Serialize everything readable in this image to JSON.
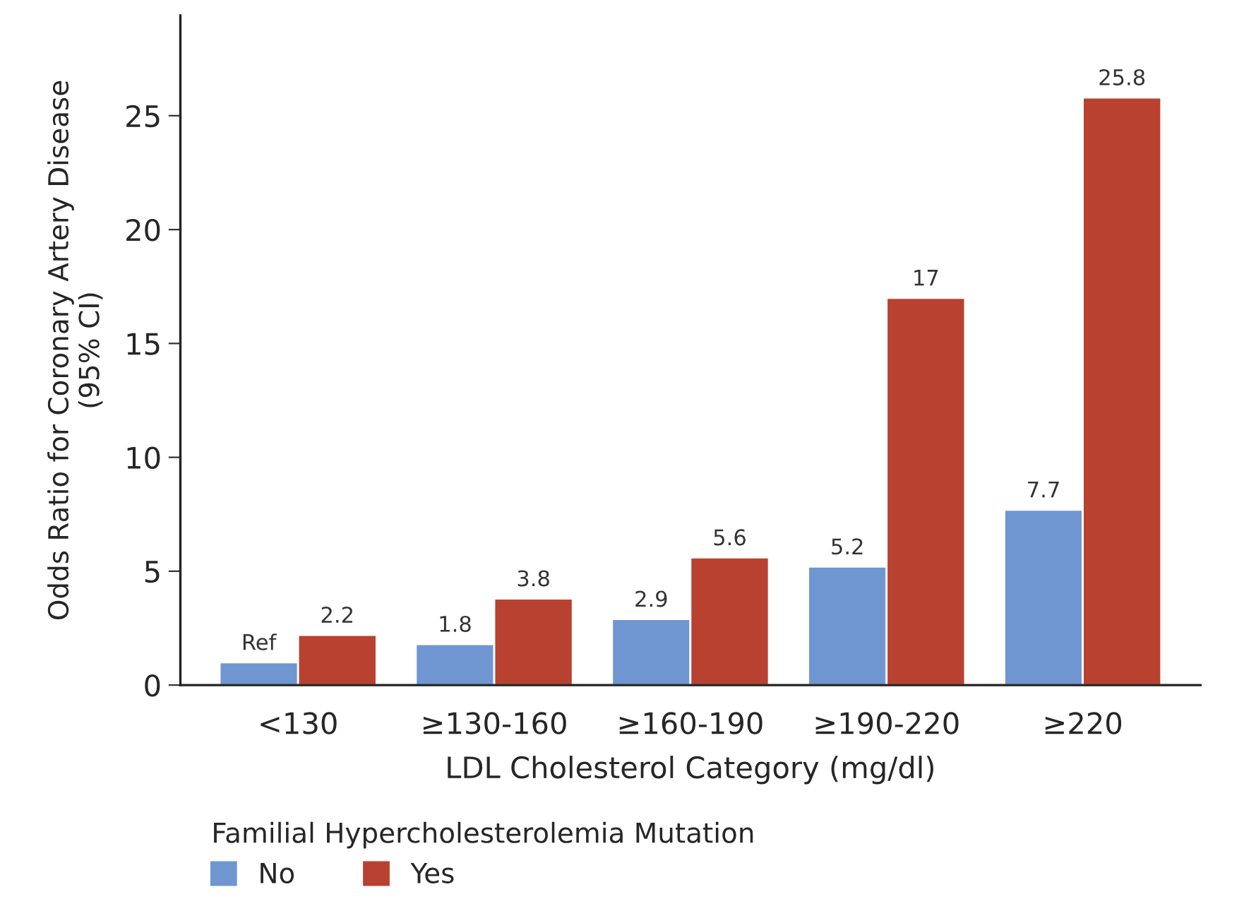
{
  "chart_data": {
    "type": "bar",
    "xlabel": "LDL Cholesterol Category (mg/dl)",
    "ylabel": "Odds Ratio for Coronary Artery Disease\n(95% CI)",
    "legend_title": "Familial Hypercholesterolemia Mutation",
    "legend": "bottom",
    "categories": [
      "<130",
      "≥130-160",
      "≥160-190",
      "≥190-220",
      "≥220"
    ],
    "series": [
      {
        "name": "No",
        "color": "#6f96d1",
        "values": [
          1,
          1.8,
          2.9,
          5.2,
          7.7
        ],
        "value_labels": [
          "Ref",
          "1.8",
          "2.9",
          "5.2",
          "7.7"
        ]
      },
      {
        "name": "Yes",
        "color": "#b84130",
        "values": [
          2.2,
          3.8,
          5.6,
          17,
          25.8
        ],
        "value_labels": [
          "2.2",
          "3.8",
          "5.6",
          "17",
          "25.8"
        ]
      }
    ],
    "ylim": [
      0,
      29.4
    ],
    "yticks": [
      0,
      5,
      10,
      15,
      20,
      25
    ],
    "grid": false
  }
}
